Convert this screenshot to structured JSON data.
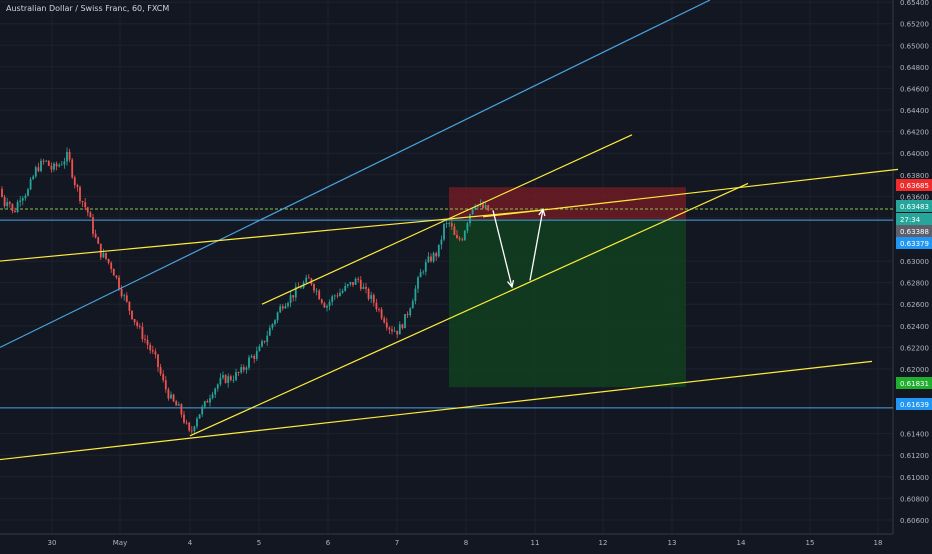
{
  "symbol_title": "Australian Dollar / Swiss Franc, 60, FXCM",
  "colors": {
    "background": "#131722",
    "grid": "#1e222d",
    "axis_text": "#b2b5be",
    "candle_up": "#26a69a",
    "candle_down": "#ef5350",
    "trendline_yellow": "#ffeb3b",
    "trendline_blue": "#4aa3df",
    "stop_zone": "#7a1c24",
    "target_zone": "#12401f",
    "arrow": "#ffffff",
    "price_tag_red": "#ef2b2b",
    "price_tag_green": "#26a69a",
    "price_tag_blue": "#2196f3",
    "price_tag_gray": "#5d606b",
    "price_tag_bright_green": "#1fae2e",
    "dashed_line": "#8bc34a"
  },
  "chart_data": {
    "type": "candlestick",
    "title": "Australian Dollar / Swiss Franc, 60, FXCM",
    "x_tick_labels": [
      "30",
      "May",
      "4",
      "5",
      "6",
      "7",
      "8",
      "11",
      "12",
      "13",
      "14",
      "15",
      "18"
    ],
    "y_tick_labels": [
      "0.65400",
      "0.65200",
      "0.65000",
      "0.64800",
      "0.64600",
      "0.64400",
      "0.64200",
      "0.64000",
      "0.63800",
      "0.63600",
      "0.63400",
      "0.63000",
      "0.62800",
      "0.62600",
      "0.62400",
      "0.62200",
      "0.62000",
      "0.61400",
      "0.61200",
      "0.61000",
      "0.60800",
      "0.60600"
    ],
    "ylim": [
      0.6047,
      0.6542
    ],
    "price_labels": [
      {
        "value": "0.63685",
        "kind": "red"
      },
      {
        "value": "0.63483",
        "kind": "green"
      },
      {
        "value": "27:34",
        "kind": "green"
      },
      {
        "value": "0.63388",
        "kind": "gray"
      },
      {
        "value": "0.63379",
        "kind": "blue"
      },
      {
        "value": "0.61831",
        "kind": "bright_green"
      },
      {
        "value": "0.61639",
        "kind": "blue"
      }
    ],
    "horizontal_levels": [
      {
        "value": 0.63379,
        "style": "solid",
        "color": "blue"
      },
      {
        "value": 0.61639,
        "style": "solid",
        "color": "blue"
      },
      {
        "value": 0.63483,
        "style": "dashed",
        "color": "green"
      }
    ],
    "position_zones": {
      "stop": {
        "top": 0.63685,
        "bottom": 0.63388
      },
      "target": {
        "top": 0.63388,
        "bottom": 0.61831
      }
    },
    "price_path": [
      [
        0,
        0.6367
      ],
      [
        4,
        0.6352
      ],
      [
        8,
        0.636
      ],
      [
        13,
        0.6343
      ],
      [
        20,
        0.636
      ],
      [
        28,
        0.6365
      ],
      [
        36,
        0.6385
      ],
      [
        45,
        0.6393
      ],
      [
        52,
        0.6385
      ],
      [
        60,
        0.639
      ],
      [
        68,
        0.6398
      ],
      [
        74,
        0.6375
      ],
      [
        80,
        0.636
      ],
      [
        88,
        0.6345
      ],
      [
        94,
        0.6325
      ],
      [
        100,
        0.6308
      ],
      [
        106,
        0.6302
      ],
      [
        112,
        0.6294
      ],
      [
        118,
        0.628
      ],
      [
        126,
        0.6262
      ],
      [
        132,
        0.625
      ],
      [
        140,
        0.6235
      ],
      [
        148,
        0.6222
      ],
      [
        156,
        0.6208
      ],
      [
        164,
        0.6185
      ],
      [
        172,
        0.617
      ],
      [
        180,
        0.6162
      ],
      [
        186,
        0.6148
      ],
      [
        190,
        0.6138
      ],
      [
        196,
        0.6155
      ],
      [
        204,
        0.6165
      ],
      [
        212,
        0.618
      ],
      [
        222,
        0.619
      ],
      [
        232,
        0.6192
      ],
      [
        242,
        0.6198
      ],
      [
        250,
        0.621
      ],
      [
        258,
        0.6215
      ],
      [
        266,
        0.623
      ],
      [
        274,
        0.6245
      ],
      [
        282,
        0.626
      ],
      [
        292,
        0.6268
      ],
      [
        302,
        0.6278
      ],
      [
        310,
        0.6283
      ],
      [
        318,
        0.627
      ],
      [
        326,
        0.6258
      ],
      [
        334,
        0.6268
      ],
      [
        342,
        0.6272
      ],
      [
        350,
        0.6278
      ],
      [
        358,
        0.6283
      ],
      [
        366,
        0.627
      ],
      [
        374,
        0.6262
      ],
      [
        382,
        0.625
      ],
      [
        390,
        0.6238
      ],
      [
        398,
        0.6235
      ],
      [
        406,
        0.6248
      ],
      [
        414,
        0.627
      ],
      [
        422,
        0.6292
      ],
      [
        430,
        0.6302
      ],
      [
        438,
        0.6308
      ],
      [
        444,
        0.6332
      ],
      [
        450,
        0.6335
      ],
      [
        456,
        0.6318
      ],
      [
        462,
        0.6322
      ],
      [
        468,
        0.634
      ],
      [
        474,
        0.6355
      ],
      [
        480,
        0.635
      ],
      [
        486,
        0.6348
      ],
      [
        490,
        0.6346
      ]
    ],
    "trendlines": [
      {
        "color": "blue",
        "points": [
          [
            0,
            0.622
          ],
          [
            710,
            0.6542
          ]
        ]
      },
      {
        "color": "yellow",
        "points": [
          [
            0,
            0.63
          ],
          [
            540,
            0.6347
          ]
        ]
      },
      {
        "color": "yellow",
        "points": [
          [
            262,
            0.626
          ],
          [
            632,
            0.6417
          ]
        ]
      },
      {
        "color": "yellow",
        "points": [
          [
            190,
            0.6138
          ],
          [
            748,
            0.6372
          ]
        ]
      },
      {
        "color": "yellow",
        "points": [
          [
            0,
            0.6116
          ],
          [
            872,
            0.6207
          ]
        ]
      },
      {
        "color": "yellow",
        "points": [
          [
            483,
            0.6341
          ],
          [
            898,
            0.6385
          ]
        ]
      }
    ],
    "annotation_arrows": [
      {
        "from": [
          493,
          0.6347
        ],
        "to": [
          512,
          0.6276
        ]
      },
      {
        "from": [
          530,
          0.6282
        ],
        "to": [
          543,
          0.6348
        ]
      }
    ]
  }
}
